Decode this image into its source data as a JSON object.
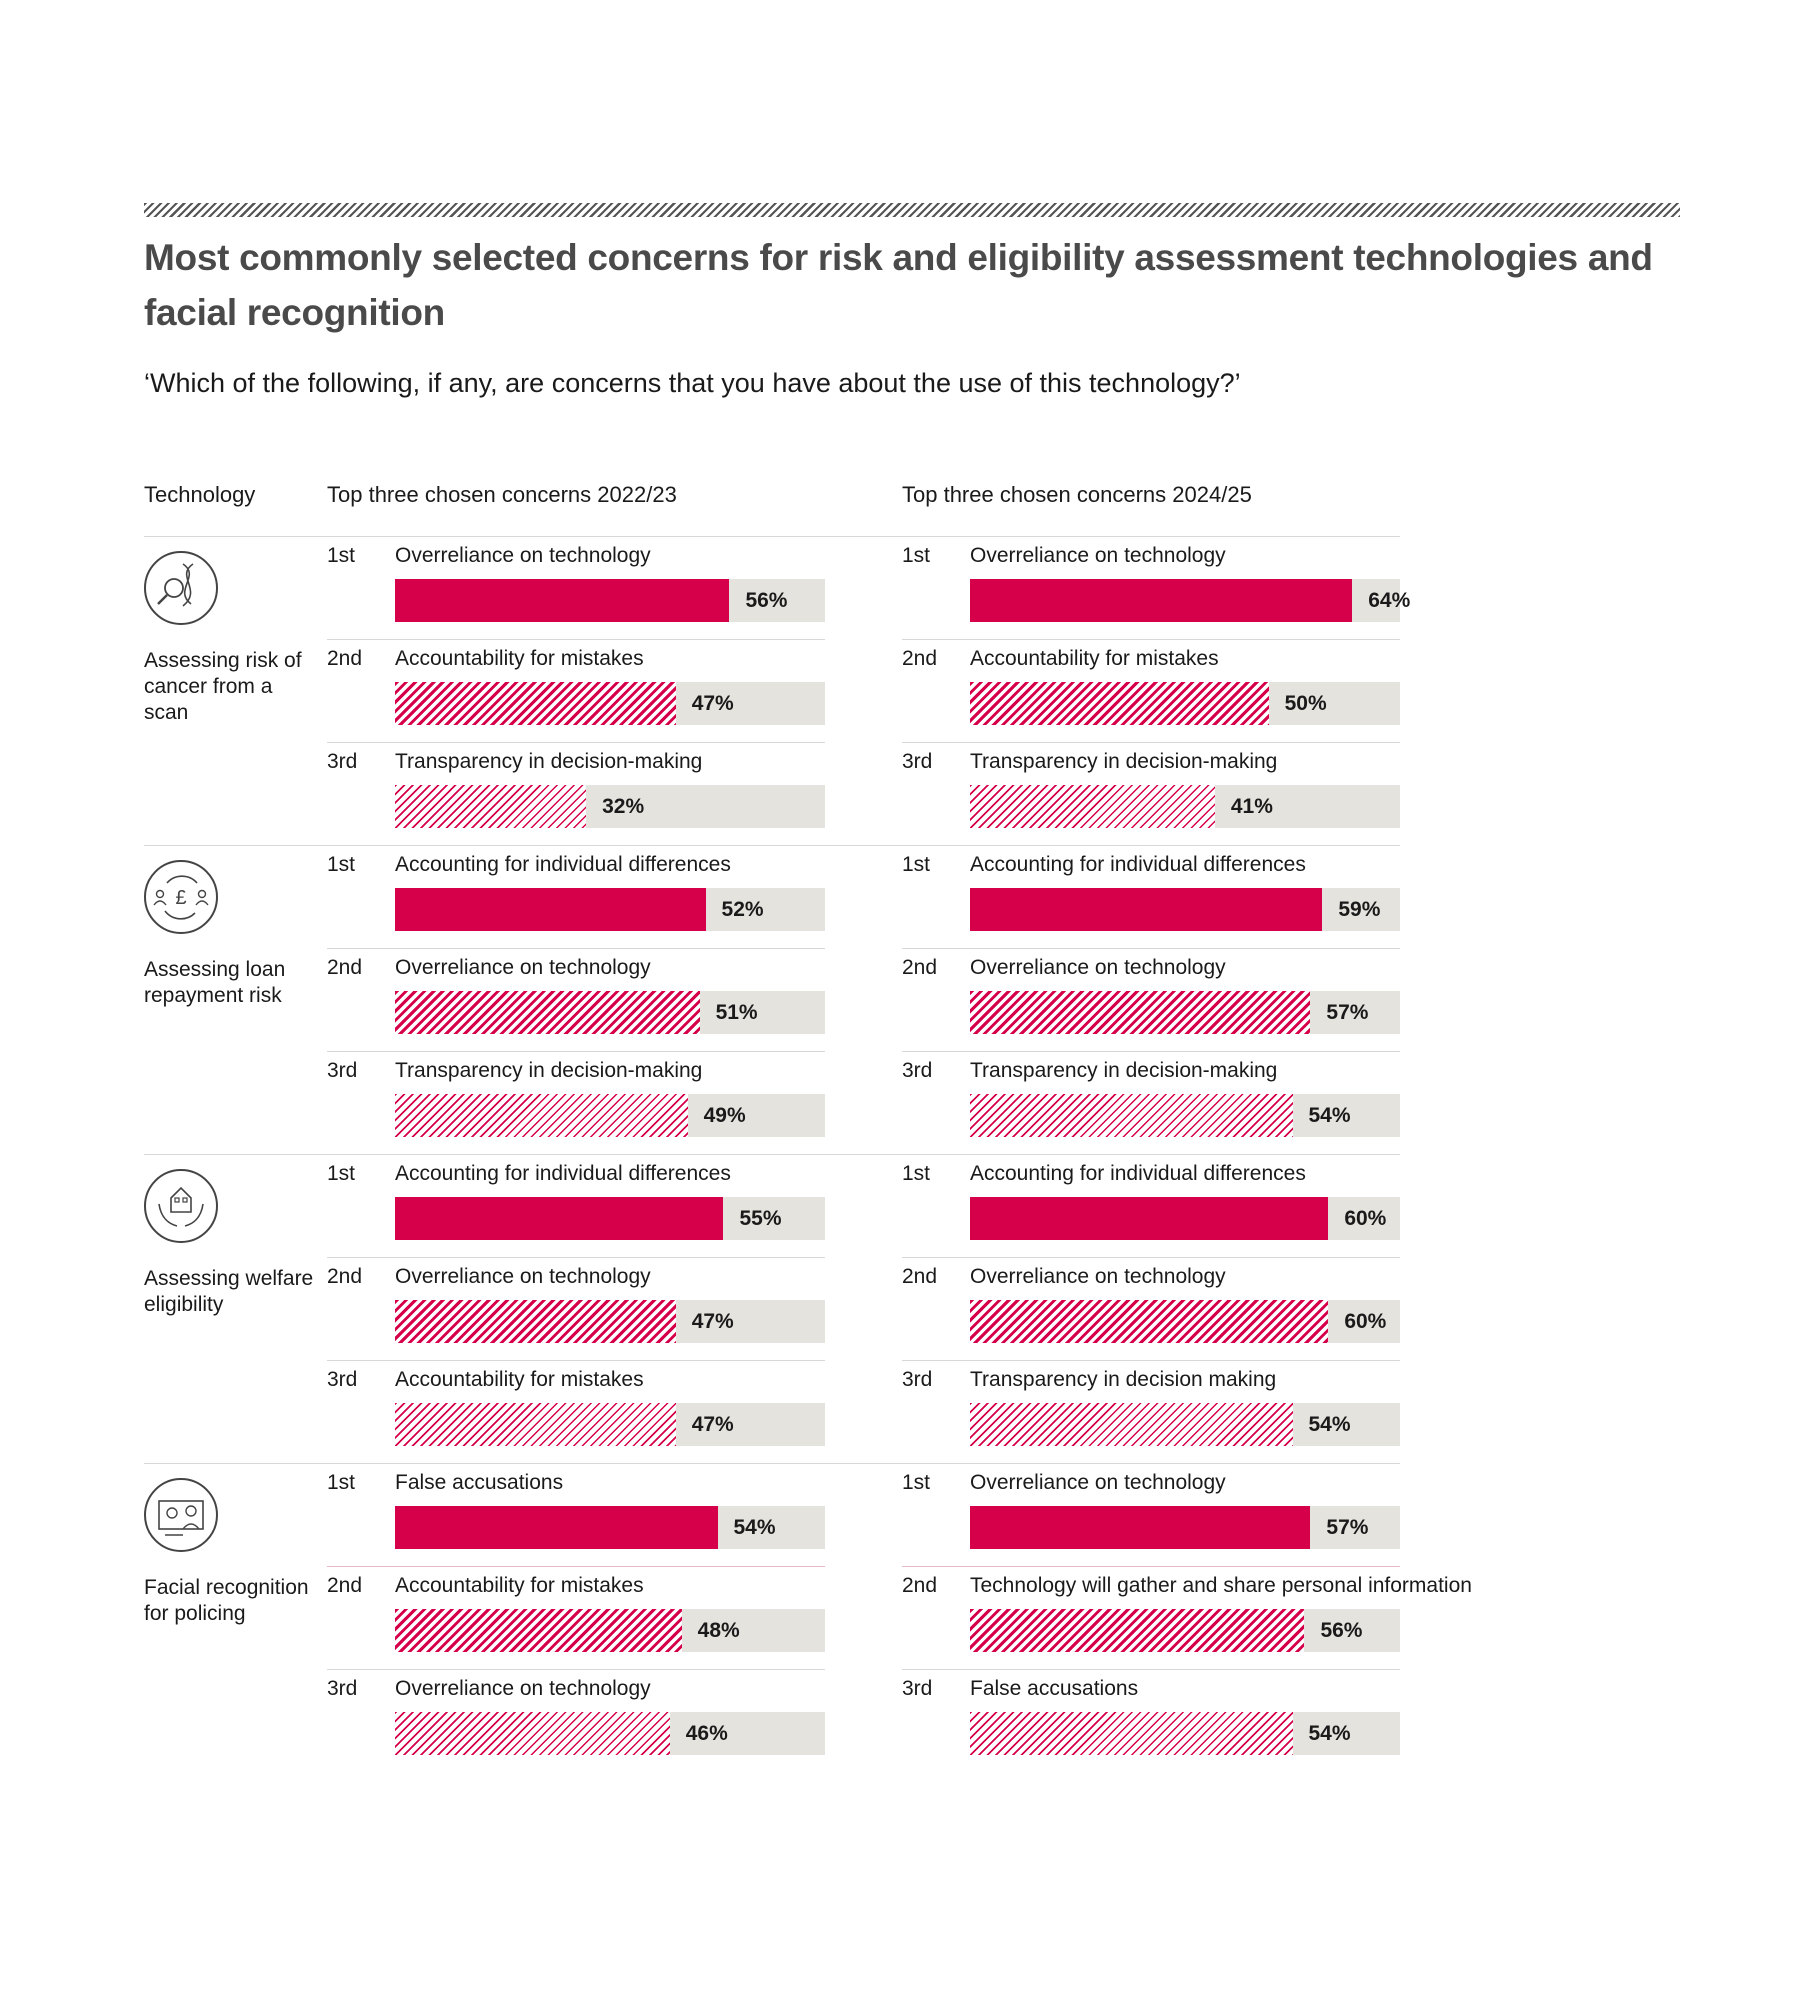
{
  "title": "Most commonly selected concerns for risk and eligibility assessment technologies and facial recognition",
  "question": "‘Which of the following, if any, are concerns that you have about the use of this technology?’",
  "headers": {
    "technology": "Technology",
    "period1": "Top three chosen concerns 2022/23",
    "period2": "Top three chosen concerns 2024/25"
  },
  "colors": {
    "accent": "#d6004a",
    "track": "#e4e3de",
    "title": "#4a4a4a"
  },
  "chart_data": {
    "type": "bar",
    "orientation": "horizontal",
    "xlim": [
      0,
      100
    ],
    "unit": "%",
    "periods": [
      "2022/23",
      "2024/25"
    ],
    "groups": [
      {
        "technology": "Assessing risk of cancer from a scan",
        "icon": "dna-magnifier-icon",
        "periods": [
          [
            {
              "rank": "1st",
              "concern": "Overreliance on technology",
              "value": 56,
              "label": "56%"
            },
            {
              "rank": "2nd",
              "concern": "Accountability for mistakes",
              "value": 47,
              "label": "47%"
            },
            {
              "rank": "3rd",
              "concern": "Transparency in decision-making",
              "value": 32,
              "label": "32%"
            }
          ],
          [
            {
              "rank": "1st",
              "concern": "Overreliance on technology",
              "value": 64,
              "label": "64%"
            },
            {
              "rank": "2nd",
              "concern": "Accountability for mistakes",
              "value": 50,
              "label": "50%"
            },
            {
              "rank": "3rd",
              "concern": "Transparency in decision-making",
              "value": 41,
              "label": "41%"
            }
          ]
        ]
      },
      {
        "technology": "Assessing loan repayment risk",
        "icon": "pound-exchange-icon",
        "periods": [
          [
            {
              "rank": "1st",
              "concern": "Accounting for individual differences",
              "value": 52,
              "label": "52%"
            },
            {
              "rank": "2nd",
              "concern": "Overreliance on technology",
              "value": 51,
              "label": "51%"
            },
            {
              "rank": "3rd",
              "concern": "Transparency in decision-making",
              "value": 49,
              "label": "49%"
            }
          ],
          [
            {
              "rank": "1st",
              "concern": "Accounting for individual differences",
              "value": 59,
              "label": "59%"
            },
            {
              "rank": "2nd",
              "concern": "Overreliance on technology",
              "value": 57,
              "label": "57%"
            },
            {
              "rank": "3rd",
              "concern": "Transparency in decision-making",
              "value": 54,
              "label": "54%"
            }
          ]
        ]
      },
      {
        "technology": "Assessing welfare eligibility",
        "icon": "house-in-hands-icon",
        "periods": [
          [
            {
              "rank": "1st",
              "concern": "Accounting for individual differences",
              "value": 55,
              "label": "55%"
            },
            {
              "rank": "2nd",
              "concern": "Overreliance on technology",
              "value": 47,
              "label": "47%"
            },
            {
              "rank": "3rd",
              "concern": "Accountability for mistakes",
              "value": 47,
              "label": "47%"
            }
          ],
          [
            {
              "rank": "1st",
              "concern": "Accounting for individual differences",
              "value": 60,
              "label": "60%"
            },
            {
              "rank": "2nd",
              "concern": "Overreliance on technology",
              "value": 60,
              "label": "60%"
            },
            {
              "rank": "3rd",
              "concern": "Transparency in decision making",
              "value": 54,
              "label": "54%"
            }
          ]
        ]
      },
      {
        "technology": "Facial recognition for policing",
        "icon": "face-scan-icon",
        "periods": [
          [
            {
              "rank": "1st",
              "concern": "False accusations",
              "value": 54,
              "label": "54%"
            },
            {
              "rank": "2nd",
              "concern": "Accountability for mistakes",
              "value": 48,
              "label": "48%"
            },
            {
              "rank": "3rd",
              "concern": "Overreliance on technology",
              "value": 46,
              "label": "46%"
            }
          ],
          [
            {
              "rank": "1st",
              "concern": "Overreliance on technology",
              "value": 57,
              "label": "57%"
            },
            {
              "rank": "2nd",
              "concern": "Technology will gather and share personal information",
              "value": 56,
              "label": "56%"
            },
            {
              "rank": "3rd",
              "concern": "False accusations",
              "value": 54,
              "label": "54%"
            }
          ]
        ]
      }
    ]
  }
}
